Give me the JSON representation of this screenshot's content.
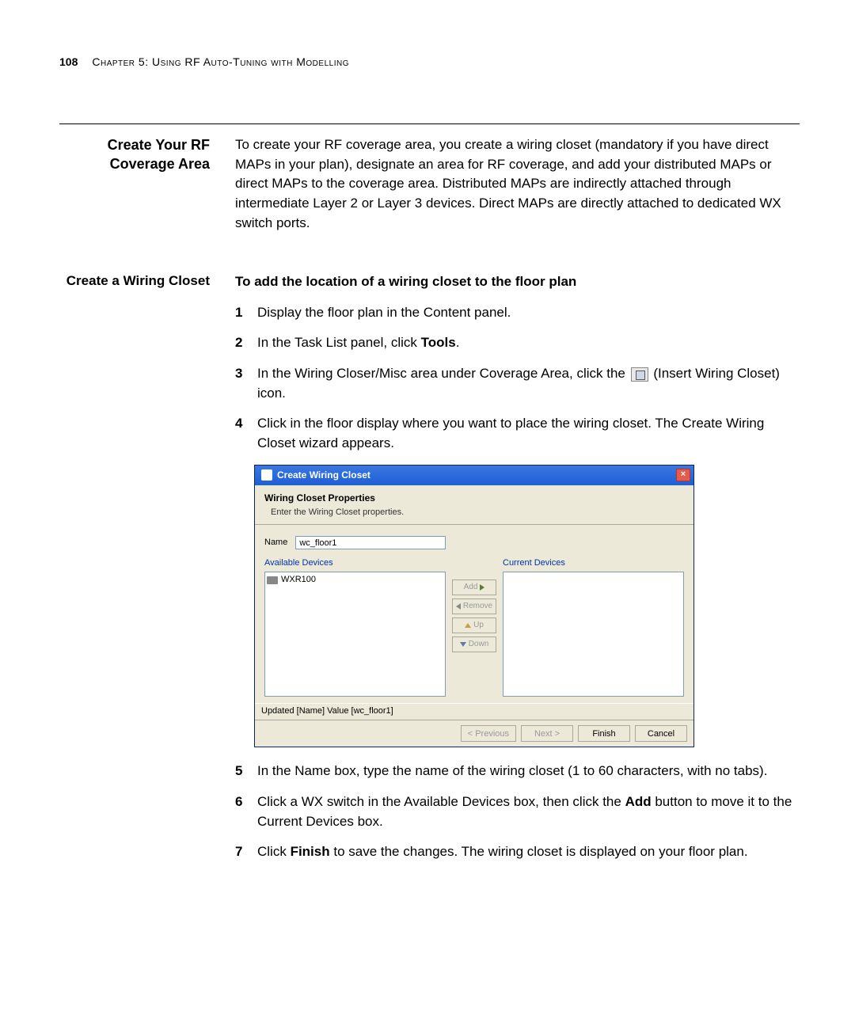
{
  "header": {
    "page_number": "108",
    "chapter_label": "Chapter 5: Using RF Auto-Tuning with Modelling"
  },
  "section1": {
    "title": "Create Your RF Coverage Area",
    "body": "To create your RF coverage area, you create a wiring closet (mandatory if you have direct MAPs in your plan), designate an area for RF coverage, and add your distributed MAPs or direct MAPs to the coverage area. Distributed MAPs are indirectly attached through intermediate Layer 2 or Layer 3 devices. Direct MAPs are directly attached to dedicated WX switch ports."
  },
  "section2": {
    "title": "Create a Wiring Closet",
    "intro": "To add the location of a wiring closet to the floor plan",
    "steps": {
      "s1": "Display the floor plan in the Content panel.",
      "s2_pre": "In the Task List panel, click ",
      "s2_bold": "Tools",
      "s2_post": ".",
      "s3_pre": "In the Wiring Closer/Misc area under Coverage Area, click the ",
      "s3_post": " (Insert Wiring Closet) icon.",
      "s4": "Click in the floor display where you want to place the wiring closet. The Create Wiring Closet wizard appears.",
      "s5": "In the Name box, type the name of the wiring closet (1 to 60 characters, with no tabs).",
      "s6_pre": "Click a WX switch in the Available Devices box, then click the ",
      "s6_bold": "Add",
      "s6_post": " button to move it to the Current Devices box.",
      "s7_pre": "Click ",
      "s7_bold": "Finish",
      "s7_post": " to save the changes. The wiring closet is displayed on your floor plan."
    }
  },
  "wizard": {
    "title": "Create Wiring Closet",
    "header_title": "Wiring Closet Properties",
    "header_sub": "Enter the Wiring Closet properties.",
    "name_label": "Name",
    "name_value": "wc_floor1",
    "available_label": "Available Devices",
    "available_item": "WXR100",
    "current_label": "Current Devices",
    "btn_add": "Add",
    "btn_remove": "Remove",
    "btn_up": "Up",
    "btn_down": "Down",
    "status": "Updated [Name] Value [wc_floor1]",
    "btn_prev": "< Previous",
    "btn_next": "Next >",
    "btn_finish": "Finish",
    "btn_cancel": "Cancel",
    "colors": {
      "titlebar": "#2a66d8",
      "panel_bg": "#ece9d8",
      "link_blue": "#0033aa",
      "close_red": "#e45b4a"
    }
  }
}
